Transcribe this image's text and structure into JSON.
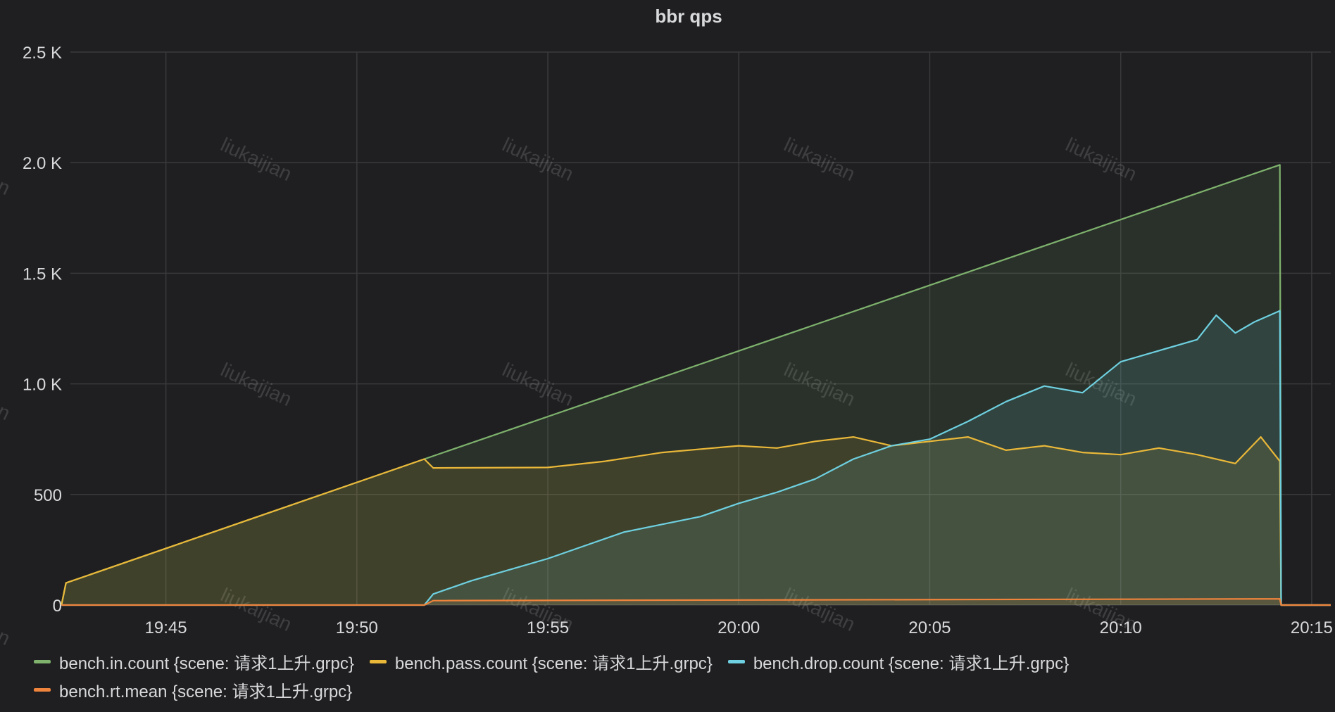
{
  "panel": {
    "title": "bbr qps"
  },
  "watermark": "liukaijian",
  "colors": {
    "background": "#1f1f21",
    "grid": "#3a3a3d",
    "text": "#d8d9da",
    "in": "#7eb26d",
    "pass": "#eab839",
    "drop": "#6ed0e0",
    "rt": "#ef843c"
  },
  "chart_data": {
    "type": "area",
    "title": "bbr qps",
    "xlabel": "",
    "ylabel": "",
    "x_domain": [
      "19:42:30",
      "20:15:30"
    ],
    "xticks": [
      "19:45",
      "19:50",
      "19:55",
      "20:00",
      "20:05",
      "20:10",
      "20:15"
    ],
    "yticks": [
      "0",
      "500",
      "1.0 K",
      "1.5 K",
      "2.0 K",
      "2.5 K"
    ],
    "ylim": [
      0,
      2500
    ],
    "grid": true,
    "legend_position": "bottom",
    "series": [
      {
        "name": "bench.in.count {scene: 请求1上升.grpc}",
        "color_key": "in",
        "points": [
          [
            "19:42:16",
            0
          ],
          [
            "19:42:23",
            100
          ],
          [
            "19:51:46",
            660
          ],
          [
            "20:14:10",
            1990
          ],
          [
            "20:14:12",
            0
          ],
          [
            "20:15:30",
            0
          ]
        ]
      },
      {
        "name": "bench.pass.count {scene: 请求1上升.grpc}",
        "color_key": "pass",
        "points": [
          [
            "19:42:16",
            0
          ],
          [
            "19:42:23",
            100
          ],
          [
            "19:51:46",
            660
          ],
          [
            "19:52:00",
            620
          ],
          [
            "19:55:00",
            622
          ],
          [
            "19:56:30",
            650
          ],
          [
            "19:58:00",
            690
          ],
          [
            "20:00:00",
            720
          ],
          [
            "20:01:00",
            710
          ],
          [
            "20:02:00",
            740
          ],
          [
            "20:03:00",
            760
          ],
          [
            "20:04:00",
            720
          ],
          [
            "20:05:00",
            740
          ],
          [
            "20:06:00",
            760
          ],
          [
            "20:07:00",
            700
          ],
          [
            "20:08:00",
            720
          ],
          [
            "20:09:00",
            690
          ],
          [
            "20:10:00",
            680
          ],
          [
            "20:11:00",
            710
          ],
          [
            "20:12:00",
            680
          ],
          [
            "20:13:00",
            640
          ],
          [
            "20:13:40",
            760
          ],
          [
            "20:14:10",
            650
          ],
          [
            "20:14:12",
            0
          ],
          [
            "20:15:30",
            0
          ]
        ]
      },
      {
        "name": "bench.drop.count {scene: 请求1上升.grpc}",
        "color_key": "drop",
        "points": [
          [
            "19:42:16",
            0
          ],
          [
            "19:51:46",
            0
          ],
          [
            "19:52:00",
            50
          ],
          [
            "19:53:00",
            110
          ],
          [
            "19:55:00",
            210
          ],
          [
            "19:57:00",
            330
          ],
          [
            "19:59:00",
            400
          ],
          [
            "20:00:00",
            460
          ],
          [
            "20:01:00",
            510
          ],
          [
            "20:02:00",
            570
          ],
          [
            "20:03:00",
            660
          ],
          [
            "20:04:00",
            720
          ],
          [
            "20:05:00",
            750
          ],
          [
            "20:06:00",
            830
          ],
          [
            "20:07:00",
            920
          ],
          [
            "20:08:00",
            990
          ],
          [
            "20:09:00",
            960
          ],
          [
            "20:10:00",
            1100
          ],
          [
            "20:11:00",
            1150
          ],
          [
            "20:12:00",
            1200
          ],
          [
            "20:12:30",
            1310
          ],
          [
            "20:13:00",
            1230
          ],
          [
            "20:13:30",
            1280
          ],
          [
            "20:14:10",
            1330
          ],
          [
            "20:14:12",
            0
          ],
          [
            "20:15:30",
            0
          ]
        ]
      },
      {
        "name": "bench.rt.mean {scene: 请求1上升.grpc}",
        "color_key": "rt",
        "points": [
          [
            "19:42:16",
            0
          ],
          [
            "19:51:46",
            0
          ],
          [
            "19:52:00",
            20
          ],
          [
            "20:14:10",
            28
          ],
          [
            "20:14:12",
            0
          ],
          [
            "20:15:30",
            0
          ]
        ]
      }
    ]
  }
}
